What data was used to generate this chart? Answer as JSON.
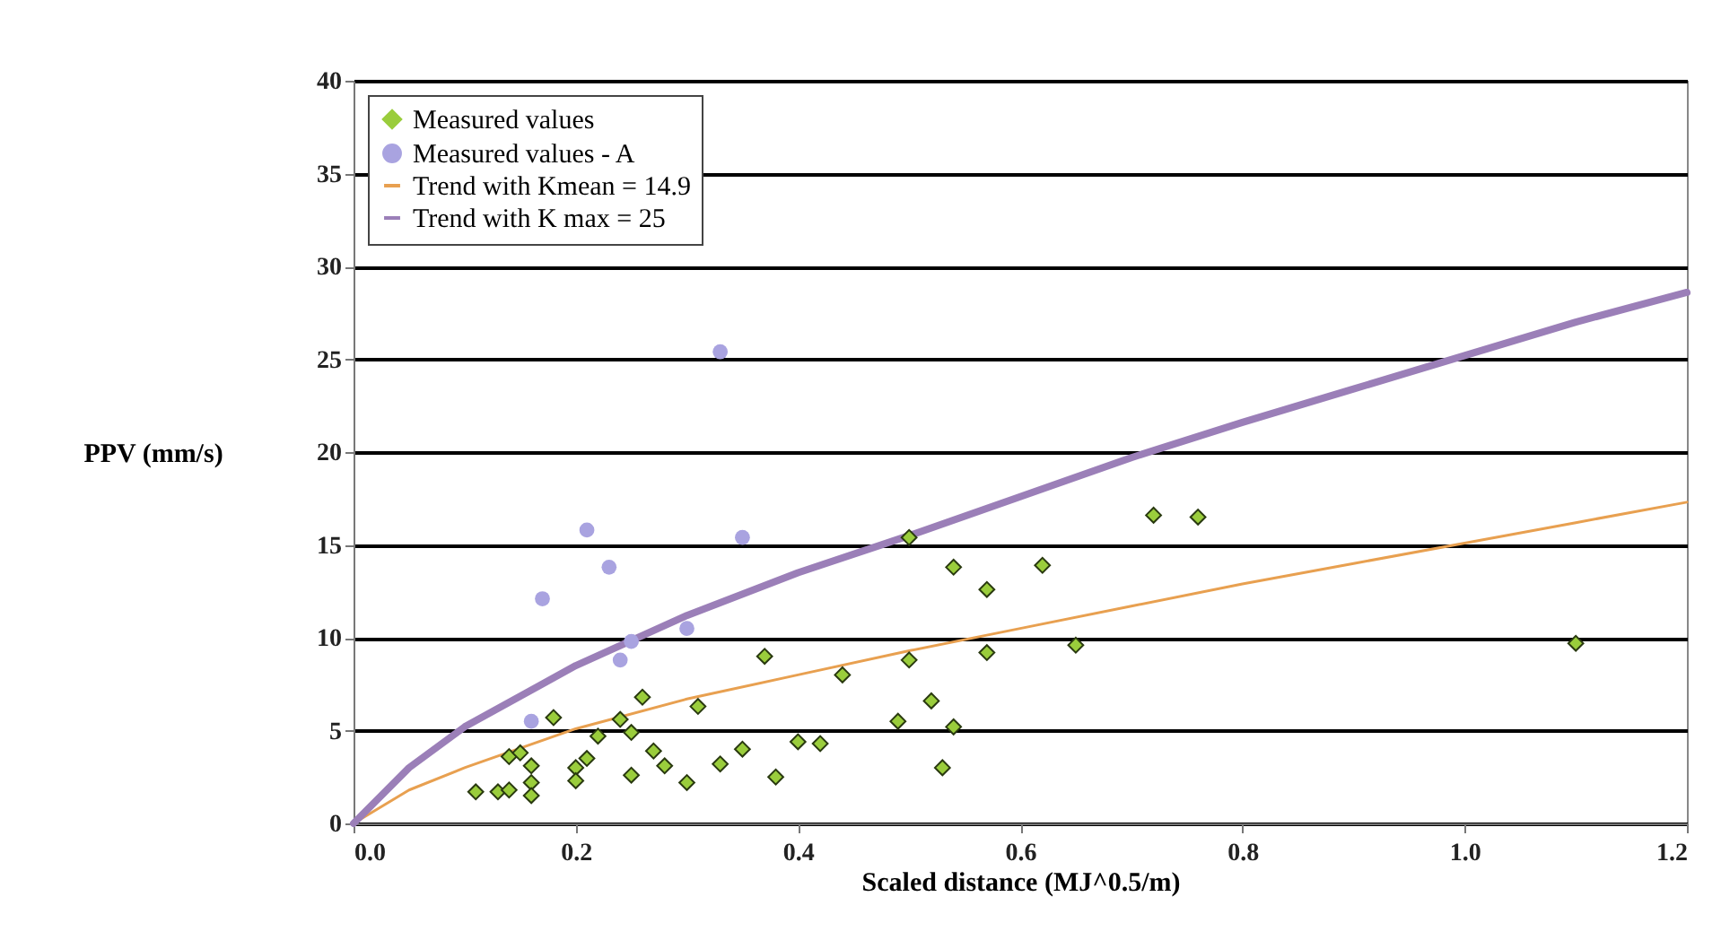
{
  "chart_data": {
    "type": "scatter",
    "xlabel": "Scaled distance (MJ^0.5/m)",
    "ylabel": "PPV (mm/s)",
    "xlim": [
      0,
      1.2
    ],
    "xticks": [
      {
        "value": 0,
        "label": "0.0"
      },
      {
        "value": 0.2,
        "label": "0.2"
      },
      {
        "value": 0.4,
        "label": "0.4"
      },
      {
        "value": 0.6,
        "label": "0.6"
      },
      {
        "value": 0.8,
        "label": "0.8"
      },
      {
        "value": 1.0,
        "label": "1.0"
      },
      {
        "value": 1.2,
        "label": "1.2"
      }
    ],
    "ylim": [
      0,
      40
    ],
    "yticks": [
      0,
      5,
      10,
      15,
      20,
      25,
      30,
      35,
      40
    ],
    "grid": "y",
    "legend": "top left",
    "series": [
      {
        "name": "Measured values",
        "type": "scatter",
        "marker": "diamond",
        "color": "#9acd3c",
        "x": [
          0.11,
          0.13,
          0.14,
          0.14,
          0.15,
          0.16,
          0.16,
          0.16,
          0.18,
          0.2,
          0.2,
          0.21,
          0.22,
          0.24,
          0.26,
          0.25,
          0.25,
          0.27,
          0.28,
          0.3,
          0.31,
          0.33,
          0.35,
          0.37,
          0.38,
          0.4,
          0.42,
          0.44,
          0.49,
          0.5,
          0.5,
          0.52,
          0.53,
          0.54,
          0.54,
          0.57,
          0.57,
          0.62,
          0.65,
          0.72,
          0.76,
          1.1
        ],
        "values": [
          1.7,
          1.7,
          1.8,
          3.6,
          3.8,
          3.1,
          2.2,
          1.5,
          5.7,
          3.0,
          2.3,
          3.5,
          4.7,
          5.6,
          6.8,
          4.9,
          2.6,
          3.9,
          3.1,
          2.2,
          6.3,
          3.2,
          4.0,
          9.0,
          2.5,
          4.4,
          4.3,
          8.0,
          5.5,
          8.8,
          15.4,
          6.6,
          3.0,
          5.2,
          13.8,
          9.2,
          12.6,
          13.9,
          9.6,
          16.6,
          16.5,
          9.7
        ]
      },
      {
        "name": "Measured values - A",
        "type": "scatter",
        "marker": "circle",
        "color": "#a9a3e0",
        "x": [
          0.16,
          0.17,
          0.21,
          0.23,
          0.24,
          0.25,
          0.3,
          0.33,
          0.35
        ],
        "values": [
          5.5,
          12.1,
          15.8,
          13.8,
          8.8,
          9.8,
          10.5,
          25.4,
          15.4
        ]
      },
      {
        "name": "Trend with Kmean = 14.9",
        "type": "line",
        "marker": "none",
        "color": "#e8a050",
        "x": [
          0,
          0.05,
          0.1,
          0.2,
          0.3,
          0.4,
          0.5,
          0.6,
          0.7,
          0.8,
          0.9,
          1.0,
          1.1,
          1.2
        ],
        "values": [
          0,
          1.8,
          3.0,
          5.1,
          6.7,
          8.0,
          9.3,
          10.5,
          11.7,
          12.9,
          14.0,
          15.1,
          16.2,
          17.3
        ]
      },
      {
        "name": "Trend with K max = 25",
        "type": "line",
        "marker": "none",
        "color": "#9b7fb8",
        "x": [
          0,
          0.05,
          0.1,
          0.2,
          0.3,
          0.4,
          0.5,
          0.6,
          0.7,
          0.8,
          0.9,
          1.0,
          1.1,
          1.2
        ],
        "values": [
          0,
          3.0,
          5.2,
          8.5,
          11.2,
          13.5,
          15.5,
          17.6,
          19.7,
          21.6,
          23.4,
          25.2,
          27.0,
          28.6
        ]
      }
    ]
  }
}
